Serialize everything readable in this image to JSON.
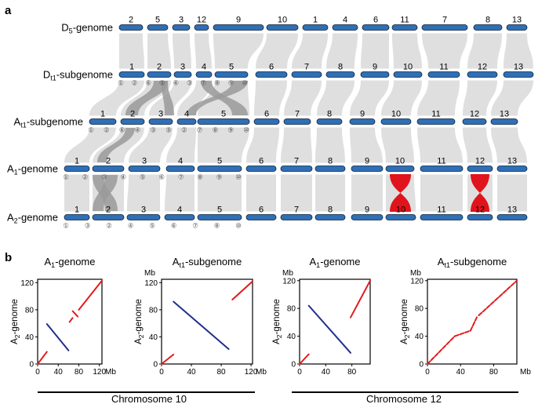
{
  "panels": {
    "a_letter": "a",
    "b_letter": "b"
  },
  "colors": {
    "chromosome": "#2f6fb5",
    "synteny": "#d4d4d4",
    "highlight_gray": "#9a9a9a",
    "inversion": "#e0141c",
    "dot_red": "#e41a1c",
    "dot_blue": "#1f2f8a"
  },
  "genomes": [
    {
      "name": "D5-genome",
      "prefix": "D",
      "sub": "5",
      "suffix": "-genome",
      "chromosomes": [
        "2",
        "5",
        "3",
        "12",
        "9",
        "10",
        "1",
        "4",
        "6",
        "11",
        "7",
        "8",
        "13"
      ],
      "markers": []
    },
    {
      "name": "Dt1-subgenome",
      "prefix": "D",
      "sub": "t1",
      "suffix": "-subgenome",
      "chromosomes": [
        "1",
        "2",
        "3",
        "4",
        "5",
        "6",
        "7",
        "8",
        "9",
        "10",
        "11",
        "12",
        "13"
      ],
      "markers": [
        "①",
        "②",
        "⑥",
        "⑤",
        "④",
        "③",
        "⑦",
        "⑧",
        "⑨",
        "⑩"
      ]
    },
    {
      "name": "At1-subgenome",
      "prefix": "A",
      "sub": "t1",
      "suffix": "-subgenome",
      "chromosomes": [
        "1",
        "2",
        "3",
        "4",
        "5",
        "6",
        "7",
        "8",
        "9",
        "10",
        "11",
        "12",
        "13"
      ],
      "markers": [
        "①",
        "②",
        "⑥",
        "④",
        "③",
        "⑤",
        "②",
        "⑦",
        "⑧",
        "⑨",
        "⑩"
      ]
    },
    {
      "name": "A1-genome",
      "prefix": "A",
      "sub": "1",
      "suffix": "-genome",
      "chromosomes": [
        "1",
        "2",
        "3",
        "4",
        "5",
        "6",
        "7",
        "8",
        "9",
        "10",
        "11",
        "12",
        "13"
      ],
      "markers": [
        "①",
        "②",
        "③",
        "④",
        "⑤",
        "⑥",
        "⑦",
        "⑧",
        "⑨",
        "⑩"
      ]
    },
    {
      "name": "A2-genome",
      "prefix": "A",
      "sub": "2",
      "suffix": "-genome",
      "chromosomes": [
        "1",
        "2",
        "3",
        "4",
        "5",
        "6",
        "7",
        "8",
        "9",
        "10",
        "11",
        "12",
        "13"
      ],
      "markers": [
        "①",
        "③",
        "②",
        "④",
        "⑤",
        "⑥",
        "⑦",
        "⑧",
        "⑩"
      ]
    }
  ],
  "chart_data": [
    {
      "type": "scatter",
      "title": "A1-genome",
      "title_prefix": "A",
      "title_sub": "1",
      "title_suffix": "-genome",
      "ylabel": "A2-genome",
      "ylabel_prefix": "A",
      "ylabel_sub": "2",
      "ylabel_suffix": "-genome",
      "xunit": "Mb",
      "yunit": "",
      "xlim": [
        0,
        125
      ],
      "ylim": [
        0,
        125
      ],
      "xticks": [
        0,
        40,
        80,
        120
      ],
      "yticks": [
        0,
        40,
        80,
        120
      ],
      "segments": [
        {
          "color": "red",
          "points": [
            [
              0,
              0
            ],
            [
              18,
              18
            ]
          ]
        },
        {
          "color": "blue",
          "points": [
            [
              18,
              59
            ],
            [
              60,
              20
            ]
          ]
        },
        {
          "color": "red",
          "points": [
            [
              62,
              62
            ],
            [
              68,
              68
            ]
          ]
        },
        {
          "color": "red",
          "points": [
            [
              68,
              78
            ],
            [
              78,
              70
            ]
          ]
        },
        {
          "color": "red",
          "points": [
            [
              80,
              80
            ],
            [
              125,
              123
            ]
          ]
        }
      ]
    },
    {
      "type": "scatter",
      "title": "At1-subgenome",
      "title_prefix": "A",
      "title_sub": "t1",
      "title_suffix": "-subgenome",
      "ylabel": "A2-genome",
      "ylabel_prefix": "A",
      "ylabel_sub": "2",
      "ylabel_suffix": "-genome",
      "xunit": "Mb",
      "yunit": "Mb",
      "xlim": [
        0,
        122
      ],
      "ylim": [
        0,
        125
      ],
      "xticks": [
        0,
        40,
        80,
        120
      ],
      "yticks": [
        0,
        40,
        80,
        120
      ],
      "segments": [
        {
          "color": "red",
          "points": [
            [
              0,
              0
            ],
            [
              16,
              14
            ]
          ]
        },
        {
          "color": "blue",
          "points": [
            [
              16,
              92
            ],
            [
              90,
              22
            ]
          ]
        },
        {
          "color": "red",
          "points": [
            [
              95,
              95
            ],
            [
              122,
              122
            ]
          ]
        }
      ]
    },
    {
      "type": "scatter",
      "title": "A1-genome",
      "title_prefix": "A",
      "title_sub": "1",
      "title_suffix": "-genome",
      "ylabel": "A2-genome",
      "ylabel_prefix": "A",
      "ylabel_sub": "2",
      "ylabel_suffix": "-genome",
      "xunit": "",
      "yunit": "Mb",
      "xlim": [
        0,
        108
      ],
      "ylim": [
        0,
        122
      ],
      "xticks": [
        0,
        40,
        80
      ],
      "yticks": [
        0,
        40,
        80,
        120
      ],
      "segments": [
        {
          "color": "red",
          "points": [
            [
              0,
              0
            ],
            [
              14,
              14
            ]
          ]
        },
        {
          "color": "blue",
          "points": [
            [
              14,
              84
            ],
            [
              78,
              16
            ]
          ]
        },
        {
          "color": "red",
          "points": [
            [
              78,
              67
            ],
            [
              108,
              120
            ]
          ]
        }
      ]
    },
    {
      "type": "scatter",
      "title": "At1-subgenome",
      "title_prefix": "A",
      "title_sub": "t1",
      "title_suffix": "-subgenome",
      "ylabel": "A2-genome",
      "ylabel_prefix": "A",
      "ylabel_sub": "2",
      "ylabel_suffix": "-genome",
      "xunit": "Mb",
      "yunit": "Mb",
      "xlim": [
        0,
        108
      ],
      "ylim": [
        0,
        122
      ],
      "xticks": [
        0,
        40,
        80
      ],
      "yticks": [
        0,
        40,
        80,
        120
      ],
      "segments": [
        {
          "color": "red",
          "points": [
            [
              0,
              0
            ],
            [
              33,
              40
            ]
          ]
        },
        {
          "color": "red",
          "points": [
            [
              33,
              40
            ],
            [
              52,
              48
            ]
          ]
        },
        {
          "color": "red",
          "points": [
            [
              52,
              48
            ],
            [
              60,
              68
            ]
          ]
        },
        {
          "color": "red",
          "points": [
            [
              62,
              70
            ],
            [
              108,
              120
            ]
          ]
        }
      ]
    }
  ],
  "chromosome_captions": [
    "Chromosome 10",
    "Chromosome 12"
  ]
}
